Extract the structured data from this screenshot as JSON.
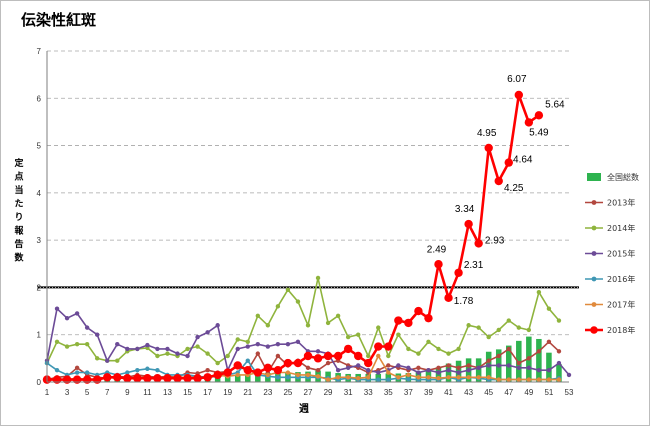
{
  "chart_data": {
    "type": "line",
    "title": "伝染性紅斑",
    "xlabel": "週",
    "ylabel": "定点当たり報告数",
    "ylim": [
      0,
      7
    ],
    "yticks": [
      "0",
      "1",
      "2",
      "3",
      "4",
      "5",
      "6",
      "7"
    ],
    "xlim": [
      1,
      53
    ],
    "xticks": [
      "1",
      "3",
      "5",
      "7",
      "9",
      "11",
      "13",
      "15",
      "17",
      "19",
      "21",
      "23",
      "25",
      "27",
      "29",
      "31",
      "33",
      "35",
      "37",
      "39",
      "41",
      "43",
      "45",
      "47",
      "49",
      "51",
      "53"
    ],
    "grid": "horizontal dashed",
    "threshold_line": 2,
    "legend_position": "right",
    "series": [
      {
        "name": "全国総数",
        "kind": "bar",
        "color": "#2eb34f",
        "x": [
          1,
          2,
          3,
          4,
          5,
          6,
          7,
          8,
          9,
          10,
          11,
          12,
          13,
          14,
          15,
          16,
          17,
          18,
          19,
          20,
          21,
          22,
          23,
          24,
          25,
          26,
          27,
          28,
          29,
          30,
          31,
          32,
          33,
          34,
          35,
          36,
          37,
          38,
          39,
          40,
          41,
          42,
          43,
          44,
          45,
          46,
          47,
          48,
          49,
          50,
          51,
          52
        ],
        "values": [
          0.02,
          0.02,
          0.03,
          0.03,
          0.04,
          0.04,
          0.05,
          0.06,
          0.06,
          0.07,
          0.07,
          0.07,
          0.08,
          0.09,
          0.09,
          0.1,
          0.11,
          0.12,
          0.13,
          0.16,
          0.16,
          0.18,
          0.19,
          0.19,
          0.2,
          0.21,
          0.22,
          0.24,
          0.22,
          0.19,
          0.17,
          0.17,
          0.17,
          0.17,
          0.18,
          0.18,
          0.19,
          0.21,
          0.26,
          0.31,
          0.39,
          0.45,
          0.5,
          0.5,
          0.64,
          0.69,
          0.77,
          0.87,
          0.96,
          0.91,
          0.62,
          0.38
        ]
      },
      {
        "name": "2013年",
        "kind": "line",
        "color": "#b2473e",
        "x": [
          1,
          2,
          3,
          4,
          5,
          6,
          7,
          8,
          9,
          10,
          11,
          12,
          13,
          14,
          15,
          16,
          17,
          18,
          19,
          20,
          21,
          22,
          23,
          24,
          25,
          26,
          27,
          28,
          29,
          30,
          31,
          32,
          33,
          34,
          35,
          36,
          37,
          38,
          39,
          40,
          41,
          42,
          43,
          44,
          45,
          46,
          47,
          48,
          49,
          50,
          51,
          52
        ],
        "values": [
          0.05,
          0.1,
          0.12,
          0.3,
          0.15,
          0.1,
          0.08,
          0.12,
          0.1,
          0.15,
          0.12,
          0.1,
          0.12,
          0.1,
          0.2,
          0.18,
          0.25,
          0.2,
          0.22,
          0.35,
          0.25,
          0.6,
          0.2,
          0.55,
          0.35,
          0.45,
          0.3,
          0.25,
          0.4,
          0.45,
          0.35,
          0.3,
          0.2,
          0.25,
          0.35,
          0.3,
          0.25,
          0.3,
          0.25,
          0.3,
          0.35,
          0.3,
          0.35,
          0.3,
          0.45,
          0.55,
          0.7,
          0.4,
          0.5,
          0.65,
          0.85,
          0.65
        ]
      },
      {
        "name": "2014年",
        "kind": "line",
        "color": "#8fb43d",
        "x": [
          1,
          2,
          3,
          4,
          5,
          6,
          7,
          8,
          9,
          10,
          11,
          12,
          13,
          14,
          15,
          16,
          17,
          18,
          19,
          20,
          21,
          22,
          23,
          24,
          25,
          26,
          27,
          28,
          29,
          30,
          31,
          32,
          33,
          34,
          35,
          36,
          37,
          38,
          39,
          40,
          41,
          42,
          43,
          44,
          45,
          46,
          47,
          48,
          49,
          50,
          51,
          52
        ],
        "values": [
          0.4,
          0.85,
          0.75,
          0.8,
          0.8,
          0.5,
          0.45,
          0.45,
          0.65,
          0.7,
          0.72,
          0.55,
          0.6,
          0.55,
          0.7,
          0.75,
          0.6,
          0.4,
          0.55,
          0.9,
          0.85,
          1.4,
          1.2,
          1.6,
          1.95,
          1.7,
          1.2,
          2.2,
          1.25,
          1.4,
          0.95,
          1.0,
          0.55,
          1.15,
          0.55,
          1.0,
          0.7,
          0.6,
          0.85,
          0.7,
          0.6,
          0.7,
          1.2,
          1.15,
          0.95,
          1.1,
          1.3,
          1.15,
          1.1,
          1.9,
          1.55,
          1.3
        ]
      },
      {
        "name": "2015年",
        "kind": "line",
        "color": "#6c4b97",
        "x": [
          1,
          2,
          3,
          4,
          5,
          6,
          7,
          8,
          9,
          10,
          11,
          12,
          13,
          14,
          15,
          16,
          17,
          18,
          19,
          20,
          21,
          22,
          23,
          24,
          25,
          26,
          27,
          28,
          29,
          30,
          31,
          32,
          33,
          34,
          35,
          36,
          37,
          38,
          39,
          40,
          41,
          42,
          43,
          44,
          45,
          46,
          47,
          48,
          49,
          50,
          51,
          52,
          53
        ],
        "values": [
          0.45,
          1.55,
          1.35,
          1.45,
          1.15,
          1.0,
          0.45,
          0.8,
          0.7,
          0.7,
          0.78,
          0.7,
          0.7,
          0.6,
          0.55,
          0.95,
          1.05,
          1.2,
          0.25,
          0.7,
          0.75,
          0.8,
          0.75,
          0.8,
          0.8,
          0.85,
          0.65,
          0.65,
          0.6,
          0.25,
          0.3,
          0.35,
          0.25,
          0.2,
          0.25,
          0.35,
          0.3,
          0.2,
          0.25,
          0.2,
          0.25,
          0.2,
          0.25,
          0.3,
          0.35,
          0.35,
          0.35,
          0.3,
          0.3,
          0.25,
          0.25,
          0.4,
          0.15
        ]
      },
      {
        "name": "2016年",
        "kind": "line",
        "color": "#3f97b4",
        "x": [
          1,
          2,
          3,
          4,
          5,
          6,
          7,
          8,
          9,
          10,
          11,
          12,
          13,
          14,
          15,
          16,
          17,
          18,
          19,
          20,
          21,
          22,
          23,
          24,
          25,
          26,
          27,
          28,
          29,
          30,
          31,
          32,
          33,
          34,
          35,
          36,
          37,
          38,
          39,
          40,
          41,
          42,
          43,
          44,
          45,
          46,
          47,
          48,
          49,
          50,
          51,
          52
        ],
        "values": [
          0.4,
          0.25,
          0.15,
          0.2,
          0.2,
          0.15,
          0.2,
          0.15,
          0.2,
          0.25,
          0.28,
          0.25,
          0.15,
          0.15,
          0.15,
          0.12,
          0.1,
          0.12,
          0.15,
          0.2,
          0.45,
          0.15,
          0.12,
          0.1,
          0.1,
          0.1,
          0.1,
          0.1,
          0.08,
          0.05,
          0.08,
          0.05,
          0.05,
          0.05,
          0.05,
          0.08,
          0.06,
          0.05,
          0.05,
          0.05,
          0.1,
          0.05,
          0.1,
          0.08,
          0.05,
          0.05,
          0.05,
          0.05,
          0.05,
          0.05,
          0.05,
          0.08
        ]
      },
      {
        "name": "2017年",
        "kind": "line",
        "color": "#e08a3c",
        "x": [
          1,
          2,
          3,
          4,
          5,
          6,
          7,
          8,
          9,
          10,
          11,
          12,
          13,
          14,
          15,
          16,
          17,
          18,
          19,
          20,
          21,
          22,
          23,
          24,
          25,
          26,
          27,
          28,
          29,
          30,
          31,
          32,
          33,
          34,
          35,
          36,
          37,
          38,
          39,
          40,
          41,
          42,
          43,
          44,
          45,
          46,
          47,
          48,
          49,
          50,
          51,
          52
        ],
        "values": [
          0.05,
          0.05,
          0.05,
          0.08,
          0.05,
          0.05,
          0.1,
          0.08,
          0.08,
          0.1,
          0.1,
          0.08,
          0.1,
          0.1,
          0.1,
          0.1,
          0.1,
          0.15,
          0.12,
          0.15,
          0.15,
          0.2,
          0.15,
          0.2,
          0.2,
          0.15,
          0.15,
          0.12,
          0.05,
          0.1,
          0.1,
          0.08,
          0.1,
          0.55,
          0.2,
          0.1,
          0.15,
          0.1,
          0.1,
          0.08,
          0.1,
          0.1,
          0.1,
          0.1,
          0.1,
          0.05,
          0.05,
          0.05,
          0.05,
          0.05,
          0.05,
          0.05
        ]
      },
      {
        "name": "2018年",
        "kind": "line",
        "color": "#ff0000",
        "x": [
          1,
          2,
          3,
          4,
          5,
          6,
          7,
          8,
          9,
          10,
          11,
          12,
          13,
          14,
          15,
          16,
          17,
          18,
          19,
          20,
          21,
          22,
          23,
          24,
          25,
          26,
          27,
          28,
          29,
          30,
          31,
          32,
          33,
          34,
          35,
          36,
          37,
          38,
          39,
          40,
          41,
          42,
          43,
          44,
          45,
          46,
          47,
          48,
          49,
          50
        ],
        "values": [
          0.05,
          0.05,
          0.05,
          0.05,
          0.05,
          0.05,
          0.1,
          0.1,
          0.08,
          0.08,
          0.08,
          0.08,
          0.08,
          0.08,
          0.08,
          0.08,
          0.1,
          0.15,
          0.2,
          0.35,
          0.25,
          0.2,
          0.3,
          0.25,
          0.4,
          0.4,
          0.55,
          0.5,
          0.55,
          0.55,
          0.7,
          0.55,
          0.4,
          0.75,
          0.75,
          1.3,
          1.25,
          1.5,
          1.35,
          2.49,
          1.78,
          2.31,
          3.34,
          2.93,
          4.95,
          4.25,
          4.64,
          6.07,
          5.49,
          5.64
        ]
      }
    ],
    "annotations": [
      {
        "text": "2.49",
        "x": 40,
        "y": 2.49
      },
      {
        "text": "1.78",
        "x": 41,
        "y": 1.78
      },
      {
        "text": "2.31",
        "x": 42,
        "y": 2.31
      },
      {
        "text": "3.34",
        "x": 43,
        "y": 3.34
      },
      {
        "text": "2.93",
        "x": 44,
        "y": 2.93
      },
      {
        "text": "4.95",
        "x": 45,
        "y": 4.95
      },
      {
        "text": "4.25",
        "x": 46,
        "y": 4.25
      },
      {
        "text": "4.64",
        "x": 47,
        "y": 4.64
      },
      {
        "text": "6.07",
        "x": 48,
        "y": 6.07
      },
      {
        "text": "5.49",
        "x": 49,
        "y": 5.49
      },
      {
        "text": "5.64",
        "x": 50,
        "y": 5.64
      }
    ]
  }
}
